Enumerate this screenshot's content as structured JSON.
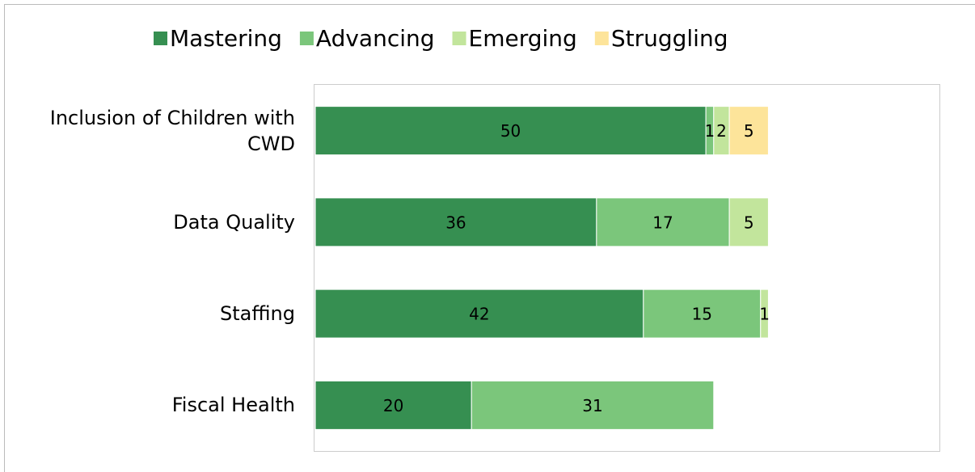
{
  "chart_data": {
    "type": "stacked_bar_horizontal",
    "categories": [
      "Inclusion of Children with CWD",
      "Data Quality",
      "Staffing",
      "Fiscal Health"
    ],
    "series": [
      {
        "name": "Mastering",
        "color": "#368f51",
        "values": [
          50,
          36,
          42,
          20
        ]
      },
      {
        "name": "Advancing",
        "color": "#7bc67b",
        "values": [
          1,
          17,
          15,
          31
        ]
      },
      {
        "name": "Emerging",
        "color": "#c2e59c",
        "values": [
          2,
          5,
          1,
          null
        ]
      },
      {
        "name": "Struggling",
        "color": "#fde49a",
        "values": [
          5,
          null,
          null,
          null
        ]
      }
    ],
    "xlim": [
      0,
      80
    ],
    "legend": "top"
  }
}
